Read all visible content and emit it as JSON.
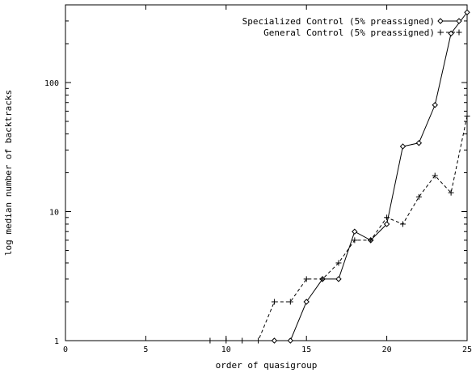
{
  "chart_data": {
    "type": "line",
    "xlabel": "order of quasigroup",
    "ylabel": "log median number of backtracks",
    "xlim": [
      0,
      25
    ],
    "ylim": [
      1,
      400
    ],
    "yscale": "log",
    "x_ticks": [
      0,
      5,
      10,
      15,
      20,
      25
    ],
    "y_ticks": [
      1,
      10,
      100
    ],
    "x_tick_labels": [
      "0",
      "5",
      "10",
      "15",
      "20",
      "25"
    ],
    "y_tick_labels": [
      "1",
      "10",
      "100"
    ],
    "legend_position": "top-right",
    "grid": false,
    "series": [
      {
        "name": "Specialized Control (5% preassigned)",
        "marker": "diamond",
        "line_style": "solid",
        "color": "#000000",
        "x": [
          13,
          14,
          15,
          16,
          17,
          18,
          19,
          20,
          21,
          22,
          23,
          24,
          25
        ],
        "y": [
          1,
          1,
          2,
          3,
          3,
          7,
          6,
          8,
          32,
          34,
          67,
          240,
          350
        ]
      },
      {
        "name": "General Control (5% preassigned)",
        "marker": "plus",
        "line_style": "dashed",
        "color": "#000000",
        "x": [
          9,
          10,
          11,
          12,
          13,
          14,
          15,
          16,
          17,
          18,
          19,
          20,
          21,
          22,
          23,
          24,
          25
        ],
        "y": [
          1,
          1,
          1,
          1,
          2,
          2,
          3,
          3,
          4,
          6,
          6,
          9,
          8,
          13,
          19,
          14,
          55
        ]
      }
    ]
  }
}
